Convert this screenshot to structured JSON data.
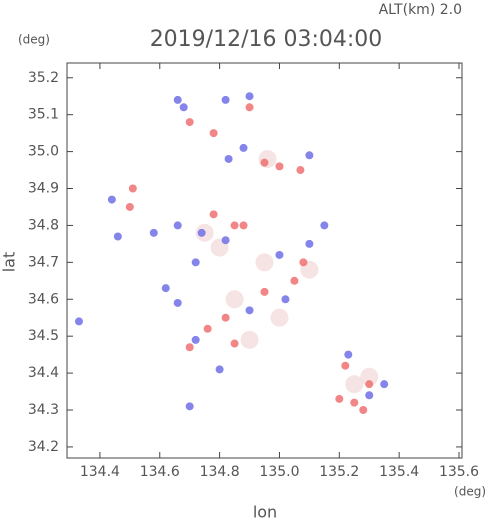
{
  "chart_data": {
    "type": "scatter",
    "title": "2019/12/16 03:04:00",
    "altitude_label": "ALT(km)  2.0",
    "y_unit": "(deg)",
    "x_unit": "(deg)",
    "xlabel": "lon",
    "ylabel": "lat",
    "xlim": [
      134.29,
      135.61
    ],
    "ylim": [
      34.17,
      35.24
    ],
    "xticks": [
      134.4,
      134.6,
      134.8,
      {
        "value": 135.0,
        "label": "135.0"
      },
      135.2,
      135.4,
      135.6
    ],
    "yticks": [
      34.2,
      34.3,
      34.4,
      34.5,
      34.6,
      34.7,
      34.8,
      34.9,
      {
        "value": 35.0,
        "label": "35.0"
      },
      35.1,
      35.2
    ],
    "series": [
      {
        "color": "#f4dede",
        "x": [
          134.75,
          134.8,
          135.25,
          135.3,
          134.9,
          135.0,
          134.96,
          135.1,
          134.95,
          134.85
        ],
        "y": [
          34.78,
          34.74,
          34.37,
          34.39,
          34.49,
          34.55,
          34.98,
          34.68,
          34.7,
          34.6
        ]
      },
      {
        "color": "#f07070",
        "x": [
          134.7,
          134.78,
          134.9,
          134.95,
          135.0,
          135.07,
          134.5,
          134.51,
          134.78,
          134.85,
          134.88,
          134.82,
          134.85,
          134.7,
          134.95,
          135.05,
          135.08,
          135.2,
          135.25,
          135.3,
          135.22,
          134.76,
          135.28
        ],
        "y": [
          35.08,
          35.05,
          35.12,
          34.97,
          34.96,
          34.95,
          34.85,
          34.9,
          34.83,
          34.8,
          34.8,
          34.55,
          34.48,
          34.47,
          34.62,
          34.65,
          34.7,
          34.33,
          34.32,
          34.37,
          34.42,
          34.52,
          34.3
        ]
      },
      {
        "color": "#6f6fe8",
        "x": [
          134.68,
          134.66,
          134.82,
          134.9,
          134.88,
          134.83,
          135.1,
          134.44,
          134.46,
          134.58,
          134.66,
          134.74,
          134.82,
          134.72,
          134.62,
          134.66,
          134.33,
          134.72,
          134.8,
          135.0,
          135.02,
          135.1,
          135.15,
          135.35,
          135.3,
          135.23,
          134.9,
          134.7
        ],
        "y": [
          35.12,
          35.14,
          35.14,
          35.15,
          35.01,
          34.98,
          34.99,
          34.87,
          34.77,
          34.78,
          34.8,
          34.78,
          34.76,
          34.7,
          34.63,
          34.59,
          34.54,
          34.49,
          34.41,
          34.72,
          34.6,
          34.75,
          34.8,
          34.37,
          34.34,
          34.45,
          34.57,
          34.31
        ]
      }
    ]
  }
}
